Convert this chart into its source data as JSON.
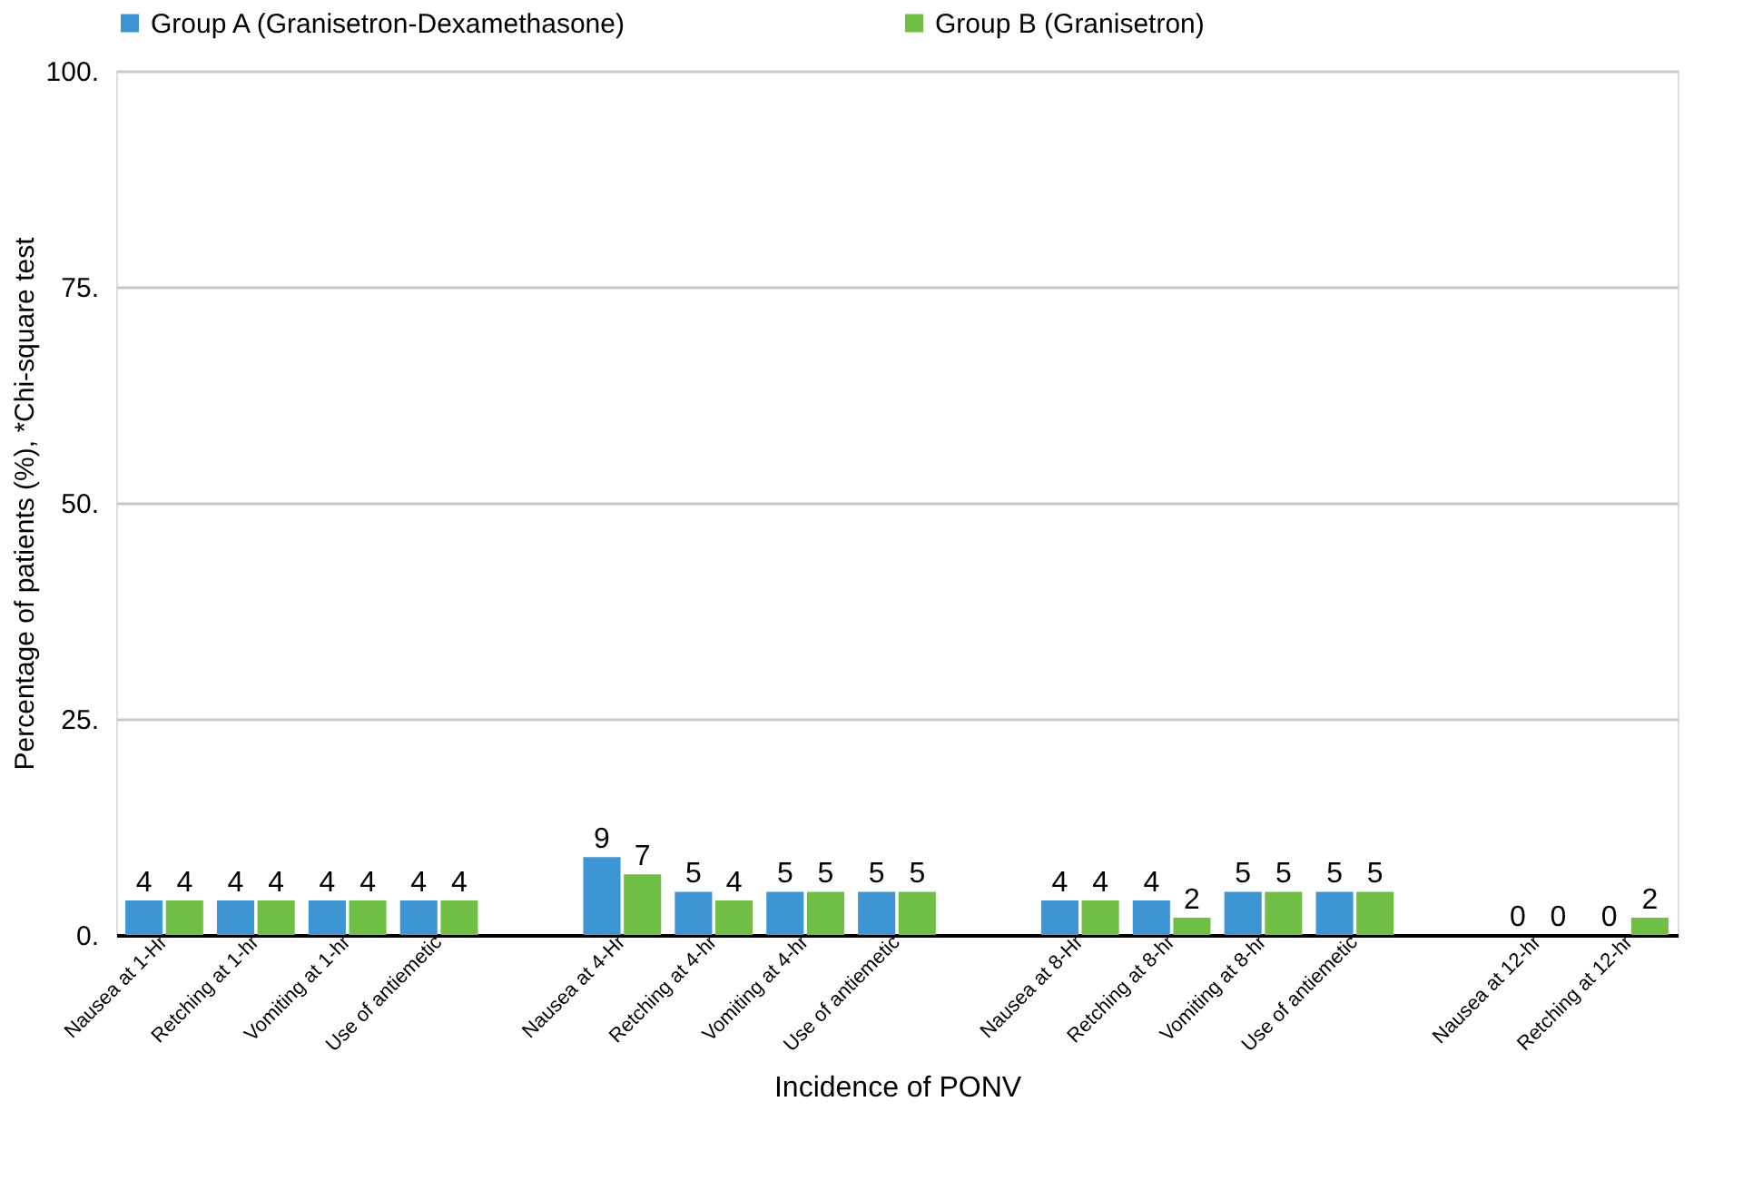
{
  "chart_data": {
    "type": "bar",
    "xlabel": "Incidence of PONV",
    "ylabel": "Percentage of patients (%), *Chi-square test",
    "categories": [
      "Nausea at 1-Hr",
      "Retching at 1-hr",
      "Vomiting at 1-hr",
      "Use of antiemetic",
      null,
      "Nausea at 4-Hr",
      "Retching at 4-hr",
      "Vomiting at 4-hr",
      "Use of antiemetic",
      null,
      "Nausea at 8-Hr",
      "Retching at 8-hr",
      "Vomiting at 8-hr",
      "Use of antiemetic",
      null,
      "Nausea at 12-hr",
      "Retching at 12-hr"
    ],
    "series": [
      {
        "name": "Group A (Granisetron-Dexamethasone)",
        "color": "#3e95d4",
        "values": [
          4,
          4,
          4,
          4,
          null,
          9,
          5,
          5,
          5,
          null,
          4,
          4,
          5,
          5,
          null,
          0,
          0
        ]
      },
      {
        "name": "Group B (Granisetron)",
        "color": "#6fbf44",
        "values": [
          4,
          4,
          4,
          4,
          null,
          7,
          4,
          5,
          5,
          null,
          4,
          2,
          5,
          5,
          null,
          0,
          2
        ]
      }
    ],
    "data_labels": true,
    "ylim": [
      0,
      100
    ],
    "yticks": [
      {
        "value": 0,
        "label": "0."
      },
      {
        "value": 25,
        "label": "25."
      },
      {
        "value": 50,
        "label": "50."
      },
      {
        "value": 75,
        "label": "75."
      },
      {
        "value": 100,
        "label": "100."
      }
    ],
    "grid": "y",
    "legend": "top"
  }
}
